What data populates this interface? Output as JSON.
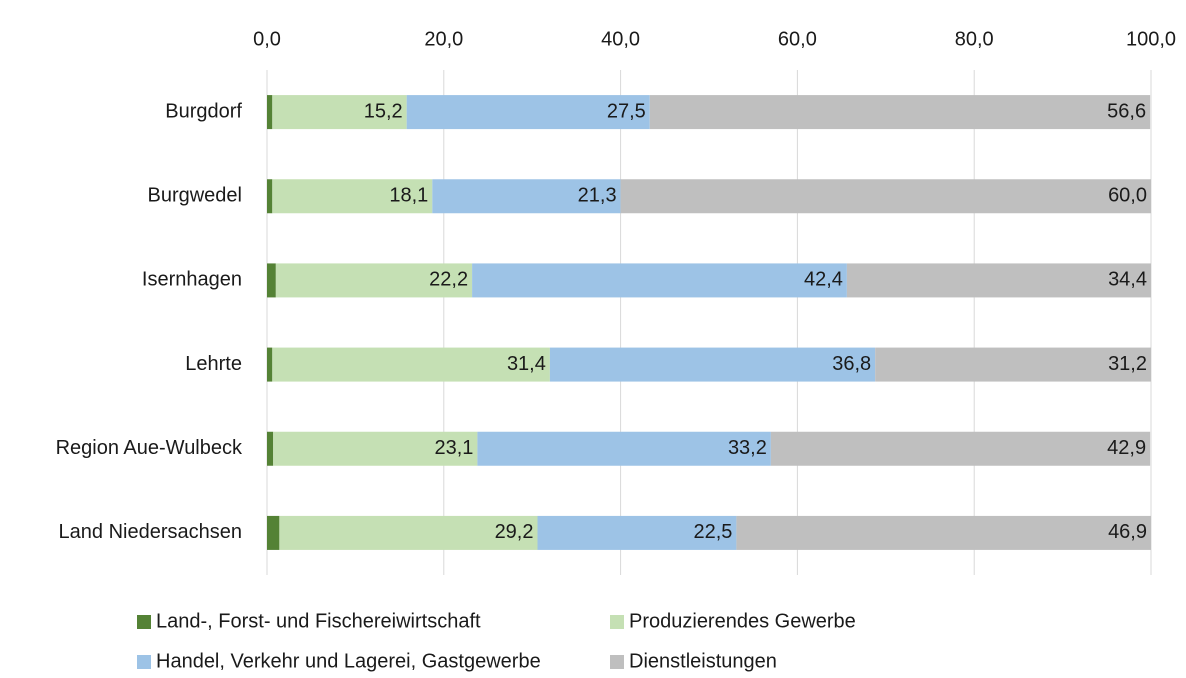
{
  "chart_data": {
    "type": "stacked-barh",
    "categories": [
      "Burgdorf",
      "Burgwedel",
      "Isernhagen",
      "Lehrte",
      "Region Aue-Wulbeck",
      "Land Niedersachsen"
    ],
    "series": [
      {
        "name": "Land-, Forst- und Fischereiwirtschaft",
        "color": "#548235",
        "values": [
          0.6,
          0.6,
          1.0,
          0.6,
          0.7,
          1.4
        ],
        "value_labels": [
          "0,6",
          "0,6",
          "1,0",
          "0,6",
          "0,7",
          "1,4"
        ]
      },
      {
        "name": "Produzierendes Gewerbe",
        "color": "#c5e0b4",
        "values": [
          15.2,
          18.1,
          22.2,
          31.4,
          23.1,
          29.2
        ],
        "value_labels": [
          "15,2",
          "18,1",
          "22,2",
          "31,4",
          "23,1",
          "29,2"
        ]
      },
      {
        "name": "Handel, Verkehr und Lagerei, Gastgewerbe",
        "color": "#9dc3e6",
        "values": [
          27.5,
          21.3,
          42.4,
          36.8,
          33.2,
          22.5
        ],
        "value_labels": [
          "27,5",
          "21,3",
          "42,4",
          "36,8",
          "33,2",
          "22,5"
        ]
      },
      {
        "name": "Dienstleistungen",
        "color": "#bfbfbf",
        "values": [
          56.6,
          60.0,
          34.4,
          31.2,
          42.9,
          46.9
        ],
        "value_labels": [
          "56,6",
          "60,0",
          "34,4",
          "31,2",
          "42,9",
          "46,9"
        ]
      }
    ],
    "xlim": [
      0,
      100
    ],
    "xticks": [
      {
        "value": 0,
        "label": "0,0"
      },
      {
        "value": 20,
        "label": "20,0"
      },
      {
        "value": 40,
        "label": "40,0"
      },
      {
        "value": 60,
        "label": "60,0"
      },
      {
        "value": 80,
        "label": "80,0"
      },
      {
        "value": 100,
        "label": "100,0"
      }
    ],
    "grid": true,
    "legend": "bottom"
  }
}
